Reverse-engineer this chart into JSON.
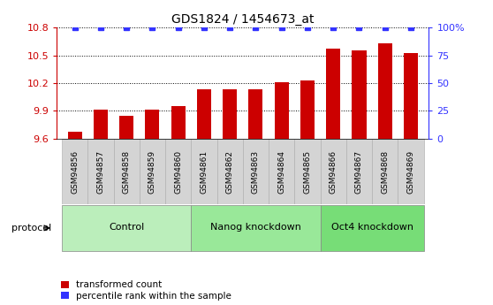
{
  "title": "GDS1824 / 1454673_at",
  "samples": [
    "GSM94856",
    "GSM94857",
    "GSM94858",
    "GSM94859",
    "GSM94860",
    "GSM94861",
    "GSM94862",
    "GSM94863",
    "GSM94864",
    "GSM94865",
    "GSM94866",
    "GSM94867",
    "GSM94868",
    "GSM94869"
  ],
  "bar_values": [
    9.68,
    9.91,
    9.85,
    9.91,
    9.95,
    10.13,
    10.13,
    10.13,
    10.205,
    10.23,
    10.575,
    10.555,
    10.625,
    10.52
  ],
  "bar_color": "#cc0000",
  "percentile_color": "#3333ff",
  "ylim_left": [
    9.6,
    10.8
  ],
  "ylim_right": [
    0,
    100
  ],
  "yticks_left": [
    9.6,
    9.9,
    10.2,
    10.5,
    10.8
  ],
  "yticks_right": [
    0,
    25,
    50,
    75,
    100
  ],
  "groups": [
    {
      "label": "Control",
      "start": 0,
      "end": 5
    },
    {
      "label": "Nanog knockdown",
      "start": 5,
      "end": 10
    },
    {
      "label": "Oct4 knockdown",
      "start": 10,
      "end": 14
    }
  ],
  "group_colors": [
    "#bbeebb",
    "#99e899",
    "#77dd77"
  ],
  "sample_box_color": "#d4d4d4",
  "sample_box_edge": "#aaaaaa",
  "protocol_label": "protocol",
  "legend_red_label": "transformed count",
  "legend_blue_label": "percentile rank within the sample",
  "bar_width": 0.55,
  "xlim": [
    -0.7,
    13.7
  ]
}
